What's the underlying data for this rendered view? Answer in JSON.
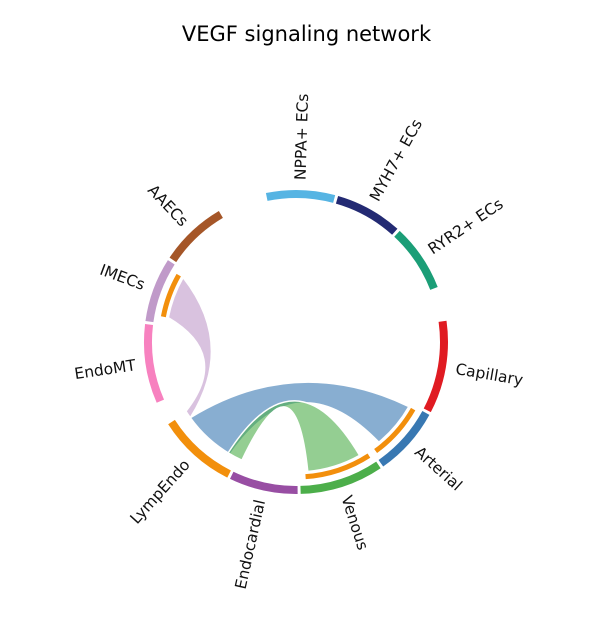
{
  "title": "VEGF signaling network",
  "diagram": {
    "type": "chord",
    "segments": [
      {
        "id": "nppa",
        "label": "NPPA+ ECs",
        "color": "#56b4e3",
        "start": -1.77,
        "end": -1.31
      },
      {
        "id": "myh7",
        "label": "MYH7+ ECs",
        "color": "#232a73",
        "start": -1.29,
        "end": -0.84
      },
      {
        "id": "ryr2",
        "label": "RYR2+ ECs",
        "color": "#1b9e77",
        "start": -0.82,
        "end": -0.37
      },
      {
        "id": "capillary",
        "label": "Capillary",
        "color": "#e01b22",
        "start": -0.14,
        "end": 0.48
      },
      {
        "id": "arterial",
        "label": "Arterial",
        "color": "#3878b2",
        "start": 0.5,
        "end": 0.96
      },
      {
        "id": "venous",
        "label": "Venous",
        "color": "#4cae4a",
        "start": 0.98,
        "end": 1.54
      },
      {
        "id": "endocardial",
        "label": "Endocardial",
        "color": "#984ea3",
        "start": 1.56,
        "end": 2.02
      },
      {
        "id": "lympendo",
        "label": "LympEndo",
        "color": "#f28f0c",
        "start": 2.04,
        "end": 2.57
      },
      {
        "id": "endomt",
        "label": "EndoMT",
        "color": "#f781bf",
        "start": 2.73,
        "end": 3.26
      },
      {
        "id": "imecs",
        "label": "IMECs",
        "color": "#c09ac9",
        "start": 3.28,
        "end": 3.71
      },
      {
        "id": "aaecs",
        "label": "AAECs",
        "color": "#a55628",
        "start": 3.73,
        "end": 4.18
      }
    ],
    "links": [
      {
        "source": "imecs",
        "target": "lympendo",
        "color": "#c09ac9"
      },
      {
        "source": "arterial",
        "target": "lympendo",
        "color": "#3878b2"
      },
      {
        "source": "venous",
        "target": "lympendo",
        "color": "#4cae4a"
      }
    ]
  }
}
